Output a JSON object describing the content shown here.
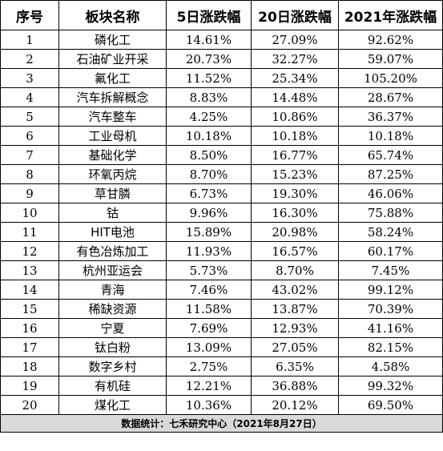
{
  "table": {
    "headers": [
      "序号",
      "板块名称",
      "5日涨跌幅",
      "20日涨跌幅",
      "2021年涨跌幅"
    ],
    "rows": [
      [
        "1",
        "磷化工",
        "14.61%",
        "27.09%",
        "92.62%"
      ],
      [
        "2",
        "石油矿业开采",
        "20.73%",
        "32.27%",
        "59.07%"
      ],
      [
        "3",
        "氟化工",
        "11.52%",
        "25.34%",
        "105.20%"
      ],
      [
        "4",
        "汽车拆解概念",
        "8.83%",
        "14.48%",
        "28.67%"
      ],
      [
        "5",
        "汽车整车",
        "4.25%",
        "10.86%",
        "36.37%"
      ],
      [
        "6",
        "工业母机",
        "10.18%",
        "10.18%",
        "10.18%"
      ],
      [
        "7",
        "基础化学",
        "8.50%",
        "16.77%",
        "65.74%"
      ],
      [
        "8",
        "环氧丙烷",
        "8.70%",
        "15.23%",
        "87.25%"
      ],
      [
        "9",
        "草甘膦",
        "6.73%",
        "19.30%",
        "46.06%"
      ],
      [
        "10",
        "钴",
        "9.96%",
        "16.30%",
        "75.88%"
      ],
      [
        "11",
        "HIT电池",
        "15.89%",
        "20.98%",
        "58.24%"
      ],
      [
        "12",
        "有色冶炼加工",
        "11.93%",
        "16.57%",
        "60.17%"
      ],
      [
        "13",
        "杭州亚运会",
        "5.73%",
        "8.70%",
        "7.45%"
      ],
      [
        "14",
        "青海",
        "7.46%",
        "43.02%",
        "99.12%"
      ],
      [
        "15",
        "稀缺资源",
        "11.58%",
        "13.87%",
        "70.39%"
      ],
      [
        "16",
        "宁夏",
        "7.69%",
        "12.93%",
        "41.16%"
      ],
      [
        "17",
        "钛白粉",
        "13.09%",
        "27.05%",
        "82.15%"
      ],
      [
        "18",
        "数字乡村",
        "2.75%",
        "6.35%",
        "4.58%"
      ],
      [
        "19",
        "有机硅",
        "12.21%",
        "36.88%",
        "99.32%"
      ],
      [
        "20",
        "煤化工",
        "10.36%",
        "20.12%",
        "69.50%"
      ]
    ],
    "footer": "数据统计：七禾研究中心（2021年8月27日）"
  }
}
